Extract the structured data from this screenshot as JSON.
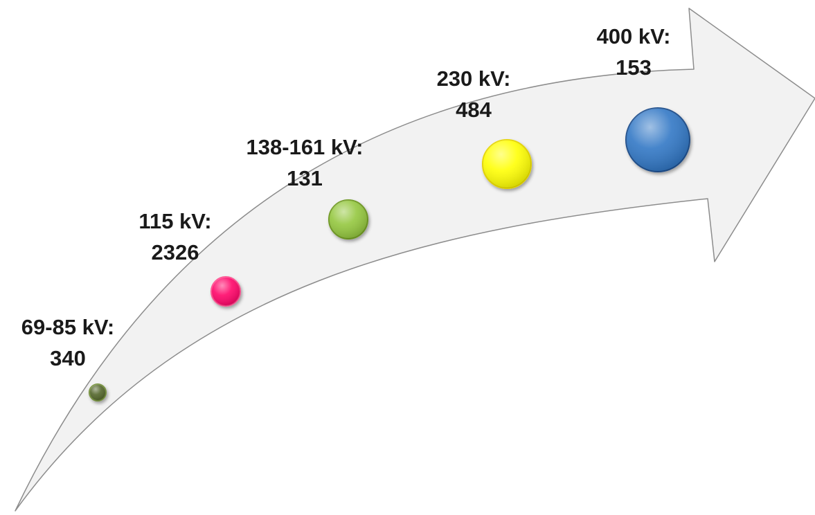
{
  "stages": [
    {
      "voltage": "69-85 kV:",
      "count": "340",
      "color": "#4f6228",
      "value": 340
    },
    {
      "voltage": "115 kV:",
      "count": "2326",
      "color": "#ff0066",
      "value": 2326
    },
    {
      "voltage": "138-161 kV:",
      "count": "131",
      "color": "#92c63a",
      "value": 131
    },
    {
      "voltage": "230 kV:",
      "count": "484",
      "color": "#ffff00",
      "value": 484
    },
    {
      "voltage": "400 kV:",
      "count": "153",
      "color": "#2e75c4",
      "value": 153
    }
  ],
  "arrow": {
    "fill": "#f2f2f2",
    "stroke": "#8c8c8c"
  }
}
